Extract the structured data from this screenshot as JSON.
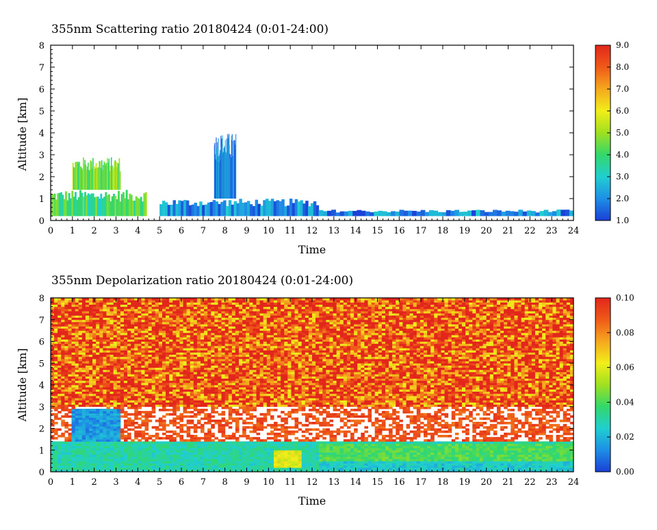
{
  "chart_data": [
    {
      "type": "heatmap",
      "title": "355nm Scattering ratio  20180424 (0:01-24:00)",
      "xlabel": "Time",
      "ylabel": "Altitude [km]",
      "xlim": [
        0,
        24
      ],
      "ylim": [
        0,
        8
      ],
      "x_ticks": [
        "0",
        "1",
        "2",
        "3",
        "4",
        "5",
        "6",
        "7",
        "8",
        "9",
        "10",
        "11",
        "12",
        "13",
        "14",
        "15",
        "16",
        "17",
        "18",
        "19",
        "20",
        "21",
        "22",
        "23",
        "24"
      ],
      "y_ticks": [
        "0",
        "1",
        "2",
        "3",
        "4",
        "5",
        "6",
        "7",
        "8"
      ],
      "colorbar": {
        "range": [
          1.0,
          9.0
        ],
        "ticks": [
          "1.0",
          "2.0",
          "3.0",
          "4.0",
          "5.0",
          "6.0",
          "7.0",
          "8.0",
          "9.0"
        ],
        "colormap": [
          "#1a3fd6",
          "#1e8fe6",
          "#20cfd0",
          "#33d86a",
          "#9fe020",
          "#f2ee1a",
          "#f5a81e",
          "#ef5a18",
          "#e2261c"
        ]
      },
      "features": [
        {
          "time": [
            0,
            4.4
          ],
          "alt": [
            0.2,
            1.4
          ],
          "value": 4.0
        },
        {
          "time": [
            1.0,
            3.2
          ],
          "alt": [
            1.4,
            2.9
          ],
          "value": 4.5
        },
        {
          "time": [
            5.0,
            12.3
          ],
          "alt": [
            0.2,
            1.0
          ],
          "value": 2.0
        },
        {
          "time": [
            7.5,
            8.5
          ],
          "alt": [
            1.0,
            4.0
          ],
          "value": 2.0
        },
        {
          "time": [
            12.3,
            24
          ],
          "alt": [
            0.2,
            0.5
          ],
          "value": 2.0
        }
      ]
    },
    {
      "type": "heatmap",
      "title": "355nm Depolarization ratio  20180424 (0:01-24:00)",
      "xlabel": "Time",
      "ylabel": "Altitude [km]",
      "xlim": [
        0,
        24
      ],
      "ylim": [
        0,
        8
      ],
      "x_ticks": [
        "0",
        "1",
        "2",
        "3",
        "4",
        "5",
        "6",
        "7",
        "8",
        "9",
        "10",
        "11",
        "12",
        "13",
        "14",
        "15",
        "16",
        "17",
        "18",
        "19",
        "20",
        "21",
        "22",
        "23",
        "24"
      ],
      "y_ticks": [
        "0",
        "1",
        "2",
        "3",
        "4",
        "5",
        "6",
        "7",
        "8"
      ],
      "colorbar": {
        "range": [
          0.0,
          0.1
        ],
        "ticks": [
          "0.00",
          "0.02",
          "0.04",
          "0.06",
          "0.08",
          "0.10"
        ],
        "colormap": [
          "#1a3fd6",
          "#1e8fe6",
          "#20cfd0",
          "#33d86a",
          "#9fe020",
          "#f2ee1a",
          "#f5a81e",
          "#ef5a18",
          "#e2261c"
        ]
      },
      "features": [
        {
          "time": [
            0,
            24
          ],
          "alt": [
            3.0,
            8.0
          ],
          "value": 0.09
        },
        {
          "time": [
            1.0,
            3.2
          ],
          "alt": [
            1.3,
            2.9
          ],
          "value": 0.015
        },
        {
          "time": [
            0,
            12.3
          ],
          "alt": [
            0,
            1.4
          ],
          "value": 0.03
        },
        {
          "time": [
            10.2,
            11.5
          ],
          "alt": [
            0.2,
            1.0
          ],
          "value": 0.06
        },
        {
          "time": [
            12.3,
            24
          ],
          "alt": [
            0.5,
            1.3
          ],
          "value": 0.04
        },
        {
          "time": [
            12.3,
            24
          ],
          "alt": [
            0,
            0.5
          ],
          "value": 0.025
        }
      ]
    }
  ]
}
